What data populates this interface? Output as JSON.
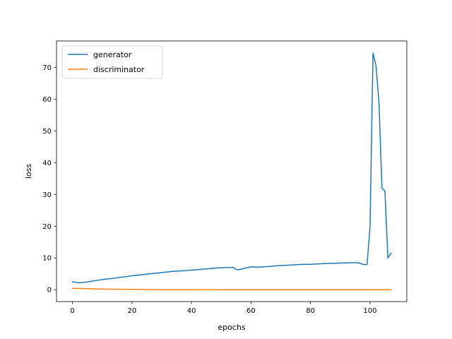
{
  "chart_data": {
    "type": "line",
    "xlabel": "epochs",
    "ylabel": "loss",
    "xlim": [
      -5.35,
      112.35
    ],
    "ylim": [
      -3.73,
      78.3
    ],
    "xticks": [
      0,
      20,
      40,
      60,
      80,
      100
    ],
    "yticks": [
      0,
      10,
      20,
      30,
      40,
      50,
      60,
      70
    ],
    "grid": false,
    "legend_position": "top-left",
    "series": [
      {
        "name": "generator",
        "color": "#1f77b4",
        "x": [
          0,
          2,
          4,
          6,
          8,
          10,
          12,
          14,
          16,
          18,
          20,
          22,
          24,
          26,
          28,
          30,
          32,
          34,
          36,
          38,
          40,
          42,
          44,
          46,
          48,
          50,
          52,
          54,
          55,
          56,
          58,
          60,
          62,
          64,
          66,
          68,
          70,
          72,
          74,
          76,
          78,
          80,
          82,
          84,
          86,
          88,
          90,
          92,
          94,
          96,
          98,
          99,
          100,
          101,
          102,
          103,
          104,
          105,
          106,
          107
        ],
        "y": [
          2.5,
          2.2,
          2.3,
          2.6,
          2.9,
          3.2,
          3.4,
          3.6,
          3.9,
          4.1,
          4.4,
          4.6,
          4.8,
          5.0,
          5.2,
          5.4,
          5.6,
          5.8,
          5.9,
          6.0,
          6.2,
          6.3,
          6.5,
          6.6,
          6.8,
          6.9,
          7.0,
          7.0,
          6.4,
          6.3,
          6.8,
          7.2,
          7.1,
          7.2,
          7.3,
          7.5,
          7.6,
          7.7,
          7.8,
          7.9,
          8.0,
          8.0,
          8.1,
          8.2,
          8.3,
          8.3,
          8.4,
          8.4,
          8.5,
          8.5,
          7.9,
          7.9,
          20.0,
          74.5,
          70.5,
          59.0,
          32.0,
          31.0,
          10.0,
          11.5
        ]
      },
      {
        "name": "discriminator",
        "color": "#ff7f0e",
        "x": [
          0,
          2,
          4,
          6,
          8,
          10,
          15,
          20,
          25,
          30,
          40,
          50,
          60,
          70,
          80,
          90,
          100,
          103,
          107
        ],
        "y": [
          0.4,
          0.4,
          0.35,
          0.3,
          0.25,
          0.2,
          0.15,
          0.1,
          0.08,
          0.05,
          0.04,
          0.03,
          0.03,
          0.03,
          0.03,
          0.03,
          0.03,
          0.0,
          0.02
        ]
      }
    ]
  }
}
